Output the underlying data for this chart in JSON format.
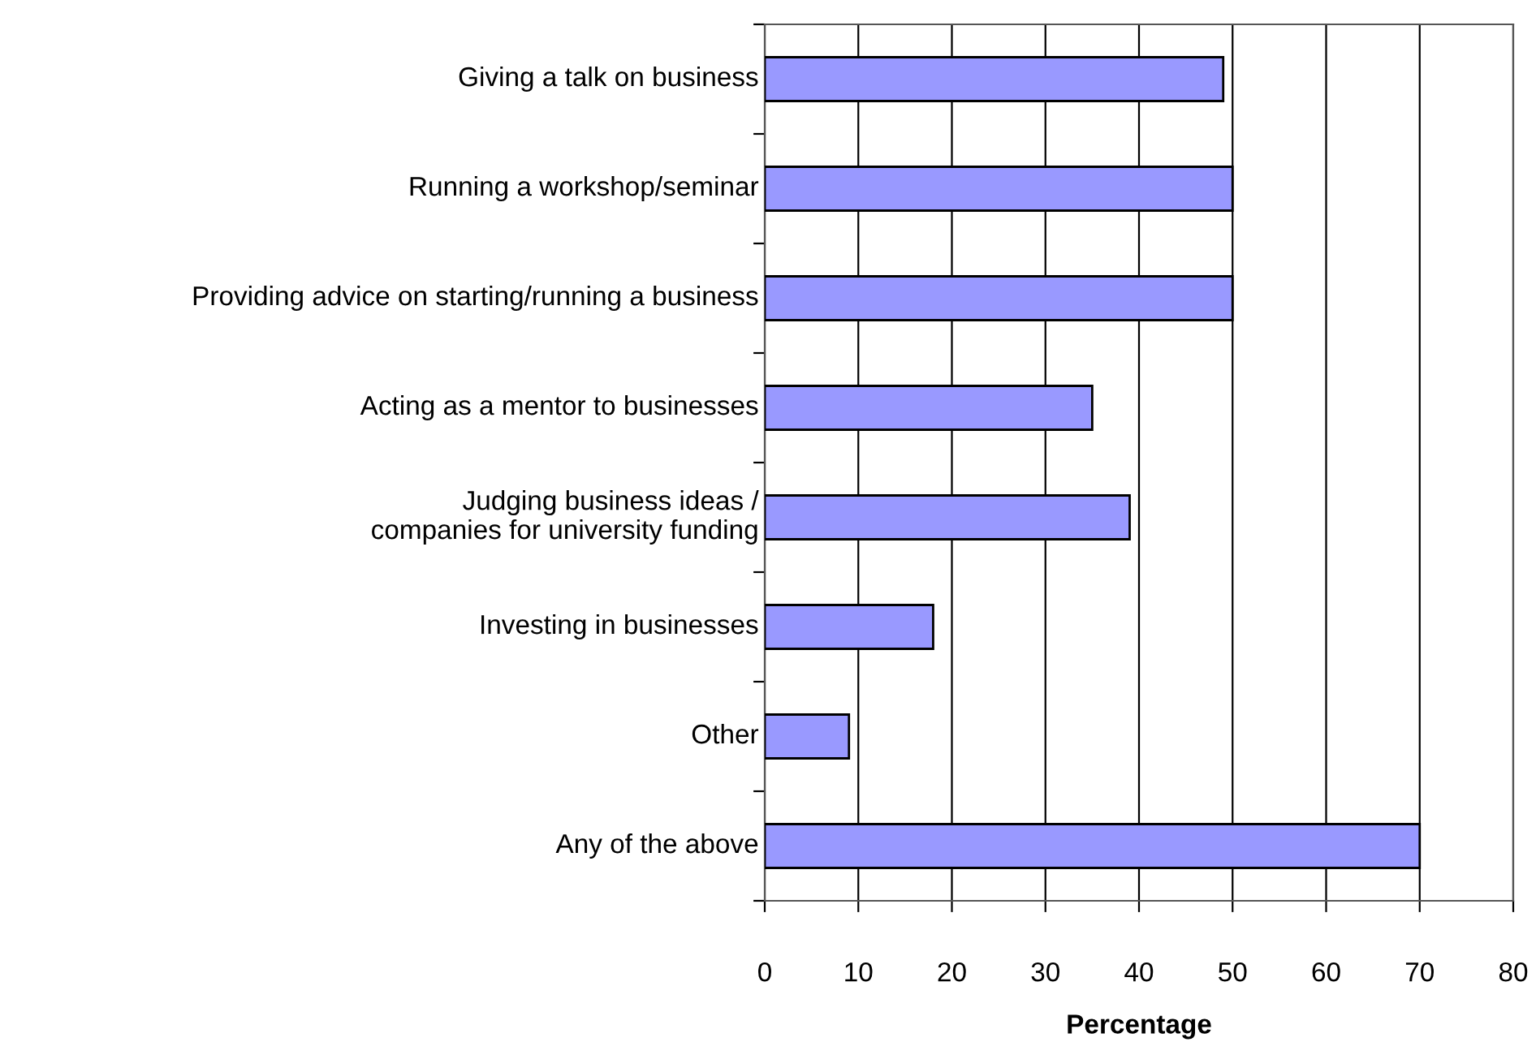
{
  "chart_data": {
    "type": "bar",
    "orientation": "horizontal",
    "xlabel": "Percentage",
    "categories": [
      "Giving a talk on business",
      "Running a workshop/seminar",
      "Providing advice on starting/running a business",
      "Acting as a mentor to businesses",
      "Judging business ideas /\ncompanies for university funding",
      "Investing in businesses",
      "Other",
      "Any of the above"
    ],
    "values": [
      49,
      50,
      50,
      35,
      39,
      18,
      9,
      70
    ],
    "color": "#9999ff",
    "xlim": [
      0,
      80
    ],
    "xticks": [
      0,
      10,
      20,
      30,
      40,
      50,
      60,
      70,
      80
    ],
    "grid": "x"
  }
}
